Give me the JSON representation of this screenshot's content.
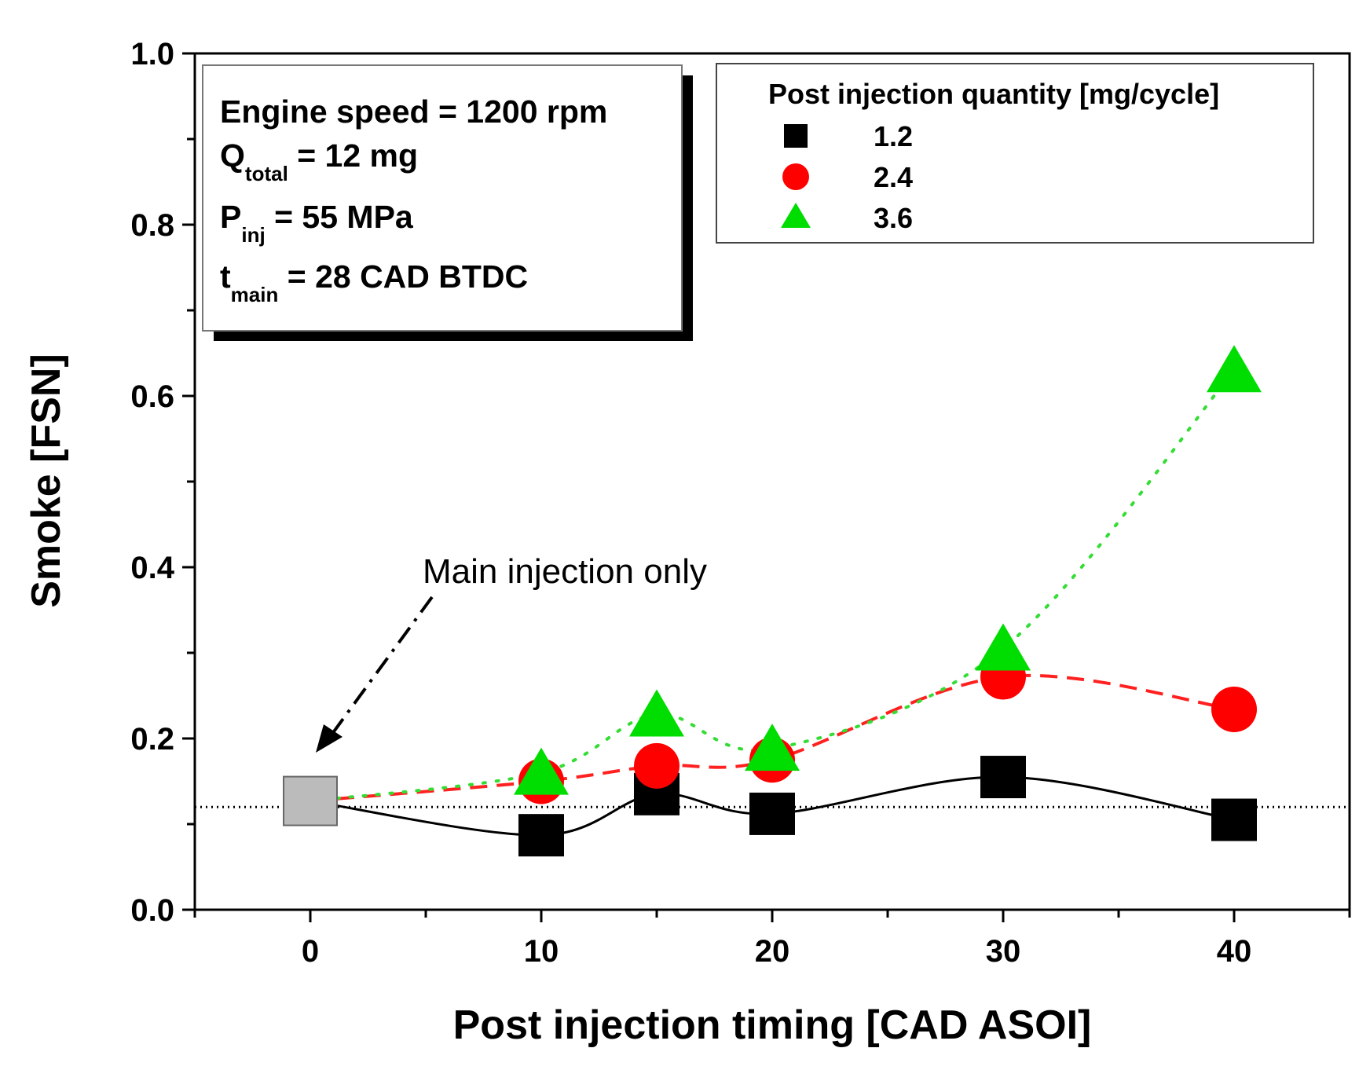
{
  "chart_data": {
    "type": "scatter",
    "xlabel": "Post injection timing [CAD ASOI]",
    "ylabel": "Smoke [FSN]",
    "xlim": [
      -5,
      45
    ],
    "ylim": [
      0.0,
      1.0
    ],
    "x_ticks": [
      "0",
      "10",
      "20",
      "30",
      "40"
    ],
    "y_ticks": [
      "0.0",
      "0.2",
      "0.4",
      "0.6",
      "0.8",
      "1.0"
    ],
    "legend": {
      "title": "Post injection quantity [mg/cycle]",
      "position": "top-right"
    },
    "series": [
      {
        "name": "1.2",
        "marker": "square",
        "color": "#000000",
        "line_style": "solid",
        "x": [
          10,
          15,
          20,
          30,
          40
        ],
        "y": [
          0.087,
          0.135,
          0.112,
          0.155,
          0.105
        ]
      },
      {
        "name": "2.4",
        "marker": "circle",
        "color": "#ff0000",
        "line_style": "dashed",
        "x": [
          10,
          15,
          20,
          30,
          40
        ],
        "y": [
          0.15,
          0.168,
          0.175,
          0.272,
          0.234
        ]
      },
      {
        "name": "3.6",
        "marker": "triangle",
        "color": "#00dd00",
        "line_style": "dotted",
        "x": [
          10,
          15,
          20,
          30,
          40
        ],
        "y": [
          0.16,
          0.228,
          0.188,
          0.305,
          0.63
        ]
      }
    ],
    "baseline": {
      "x": 0,
      "y": 0.127,
      "color": "#bbbbbb",
      "reference_line_y": 0.12
    },
    "conditions": {
      "line1": "Engine speed = 1200 rpm",
      "line2_main": "Q",
      "line2_sub": "total",
      "line2_rest": " = 12 mg",
      "line3_main": "P",
      "line3_sub": "inj",
      "line3_rest": " = 55 MPa",
      "line4_main": "t",
      "line4_sub": "main",
      "line4_rest": " = 28 CAD BTDC"
    },
    "annotation": "Main injection only"
  }
}
